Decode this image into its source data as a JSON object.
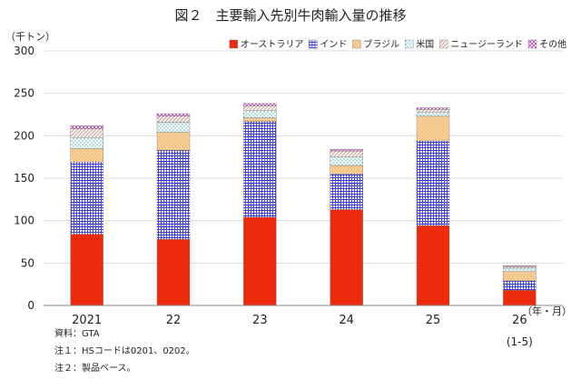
{
  "chart_data": {
    "type": "bar",
    "stacked": true,
    "title": "図２　主要輸入先別牛肉輸入量の推移",
    "ylabel": "（千トン）",
    "xlabel": "（年・月）",
    "ylim": [
      0,
      300
    ],
    "yticks": [
      0,
      50,
      100,
      150,
      200,
      250,
      300
    ],
    "grid": true,
    "legend_position": "top-right",
    "categories": [
      "2021",
      "22",
      "23",
      "24",
      "25",
      "26"
    ],
    "category_sublabels": [
      "",
      "",
      "",
      "",
      "",
      "(1-5)"
    ],
    "series": [
      {
        "name": "オーストラリア",
        "color": "#ee2a0c",
        "pattern": "solid",
        "values": [
          84,
          78,
          104,
          113,
          94,
          18
        ]
      },
      {
        "name": "インド",
        "color": "#3b3bd6",
        "pattern": "grid",
        "values": [
          85,
          105,
          113,
          42,
          100,
          11
        ]
      },
      {
        "name": "ブラジル",
        "color": "#f9c98c",
        "pattern": "dots-warm",
        "values": [
          16,
          21,
          4,
          10,
          29,
          11
        ]
      },
      {
        "name": "米国",
        "color": "#58b8b8",
        "pattern": "dots-teal",
        "values": [
          13,
          12,
          9,
          10,
          5,
          4
        ]
      },
      {
        "name": "ニュージーランド",
        "color": "#c8968a",
        "pattern": "diagonal",
        "values": [
          10,
          7,
          5,
          7,
          3,
          2
        ]
      },
      {
        "name": "その他",
        "color": "#b245b2",
        "pattern": "crosses",
        "values": [
          4,
          3,
          3,
          2,
          2,
          1
        ]
      }
    ]
  },
  "notes": {
    "source": "資料：GTA",
    "note1": "注１：HSコードは0201、0202。",
    "note2": "注２：製品ベース。"
  }
}
